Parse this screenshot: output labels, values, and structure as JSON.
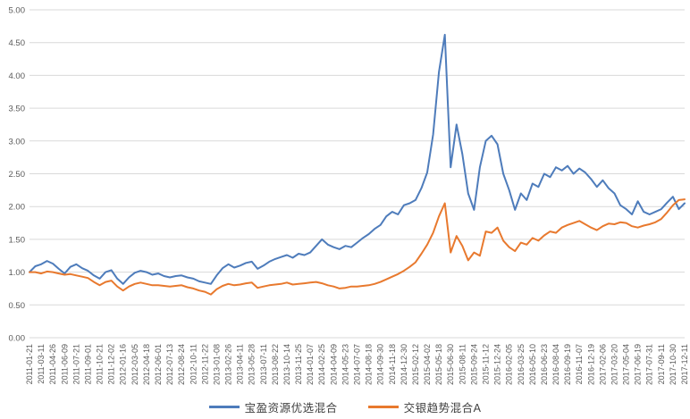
{
  "chart_data": {
    "type": "line",
    "title": "",
    "grid": true,
    "legend_position": "bottom",
    "ylim": [
      0,
      5
    ],
    "y_tick_step": 0.5,
    "y_tick_labels": [
      "5.00",
      "4.50",
      "4.00",
      "3.50",
      "3.00",
      "2.50",
      "2.00",
      "1.50",
      "1.00",
      "0.50",
      "0.00"
    ],
    "x_tick_labels": [
      "2011-01-21",
      "2011-03-11",
      "2011-04-26",
      "2011-06-09",
      "2011-07-21",
      "2011-09-01",
      "2011-10-21",
      "2011-12-02",
      "2012-01-16",
      "2012-03-05",
      "2012-04-18",
      "2012-06-01",
      "2012-07-13",
      "2012-08-24",
      "2012-10-11",
      "2012-11-22",
      "2013-01-08",
      "2013-02-26",
      "2013-04-11",
      "2013-05-28",
      "2013-07-11",
      "2013-08-22",
      "2013-10-14",
      "2013-11-25",
      "2014-01-07",
      "2014-02-25",
      "2014-04-09",
      "2014-05-23",
      "2014-07-07",
      "2014-08-18",
      "2014-09-30",
      "2014-11-18",
      "2014-12-30",
      "2015-02-12",
      "2015-04-02",
      "2015-05-18",
      "2015-06-30",
      "2015-08-11",
      "2015-09-24",
      "2015-11-12",
      "2015-12-24",
      "2016-02-05",
      "2016-03-25",
      "2016-05-10",
      "2016-06-23",
      "2016-08-04",
      "2016-09-19",
      "2016-11-07",
      "2016-12-19",
      "2017-02-06",
      "2017-03-20",
      "2017-05-04",
      "2017-06-19",
      "2017-07-31",
      "2017-09-11",
      "2017-10-30",
      "2017-12-11"
    ],
    "sample_step_in_tick_units": 0.5,
    "series": [
      {
        "name": "宝盈资源优选混合",
        "color": "#4e7cbb",
        "values": [
          1.0,
          1.09,
          1.12,
          1.17,
          1.13,
          1.05,
          0.98,
          1.08,
          1.12,
          1.06,
          1.02,
          0.95,
          0.9,
          1.0,
          1.03,
          0.9,
          0.82,
          0.92,
          0.99,
          1.02,
          1.0,
          0.96,
          0.98,
          0.94,
          0.92,
          0.94,
          0.95,
          0.92,
          0.9,
          0.86,
          0.84,
          0.82,
          0.95,
          1.06,
          1.12,
          1.07,
          1.1,
          1.14,
          1.16,
          1.05,
          1.1,
          1.16,
          1.2,
          1.23,
          1.26,
          1.22,
          1.28,
          1.26,
          1.3,
          1.4,
          1.5,
          1.42,
          1.38,
          1.35,
          1.4,
          1.38,
          1.45,
          1.52,
          1.58,
          1.66,
          1.72,
          1.85,
          1.92,
          1.88,
          2.02,
          2.05,
          2.1,
          2.28,
          2.52,
          3.1,
          4.05,
          4.62,
          2.6,
          3.25,
          2.8,
          2.2,
          1.95,
          2.6,
          3.0,
          3.08,
          2.95,
          2.5,
          2.25,
          1.95,
          2.2,
          2.1,
          2.35,
          2.3,
          2.5,
          2.45,
          2.6,
          2.55,
          2.62,
          2.5,
          2.58,
          2.52,
          2.42,
          2.3,
          2.4,
          2.28,
          2.2,
          2.02,
          1.96,
          1.88,
          2.08,
          1.92,
          1.88,
          1.92,
          1.96,
          2.06,
          2.15,
          1.96,
          2.05
        ]
      },
      {
        "name": "交银趋势混合A",
        "color": "#e8792e",
        "values": [
          1.0,
          1.0,
          0.98,
          1.01,
          1.0,
          0.98,
          0.96,
          0.97,
          0.95,
          0.93,
          0.91,
          0.85,
          0.8,
          0.85,
          0.87,
          0.78,
          0.72,
          0.78,
          0.82,
          0.84,
          0.82,
          0.8,
          0.8,
          0.79,
          0.78,
          0.79,
          0.8,
          0.77,
          0.75,
          0.72,
          0.7,
          0.66,
          0.74,
          0.79,
          0.82,
          0.8,
          0.81,
          0.83,
          0.84,
          0.76,
          0.78,
          0.8,
          0.81,
          0.82,
          0.84,
          0.81,
          0.82,
          0.83,
          0.84,
          0.85,
          0.83,
          0.8,
          0.78,
          0.75,
          0.76,
          0.78,
          0.78,
          0.79,
          0.8,
          0.82,
          0.85,
          0.89,
          0.93,
          0.97,
          1.02,
          1.08,
          1.15,
          1.28,
          1.42,
          1.6,
          1.85,
          2.05,
          1.3,
          1.55,
          1.4,
          1.18,
          1.3,
          1.25,
          1.62,
          1.6,
          1.68,
          1.48,
          1.38,
          1.32,
          1.45,
          1.42,
          1.52,
          1.48,
          1.56,
          1.62,
          1.6,
          1.68,
          1.72,
          1.75,
          1.78,
          1.73,
          1.68,
          1.64,
          1.7,
          1.74,
          1.73,
          1.76,
          1.75,
          1.7,
          1.68,
          1.71,
          1.73,
          1.76,
          1.81,
          1.91,
          2.02,
          2.1,
          2.11
        ]
      }
    ],
    "colors": {
      "gridline": "#d9d9d9",
      "tick_text": "#595959",
      "legend_text": "#404040"
    }
  }
}
